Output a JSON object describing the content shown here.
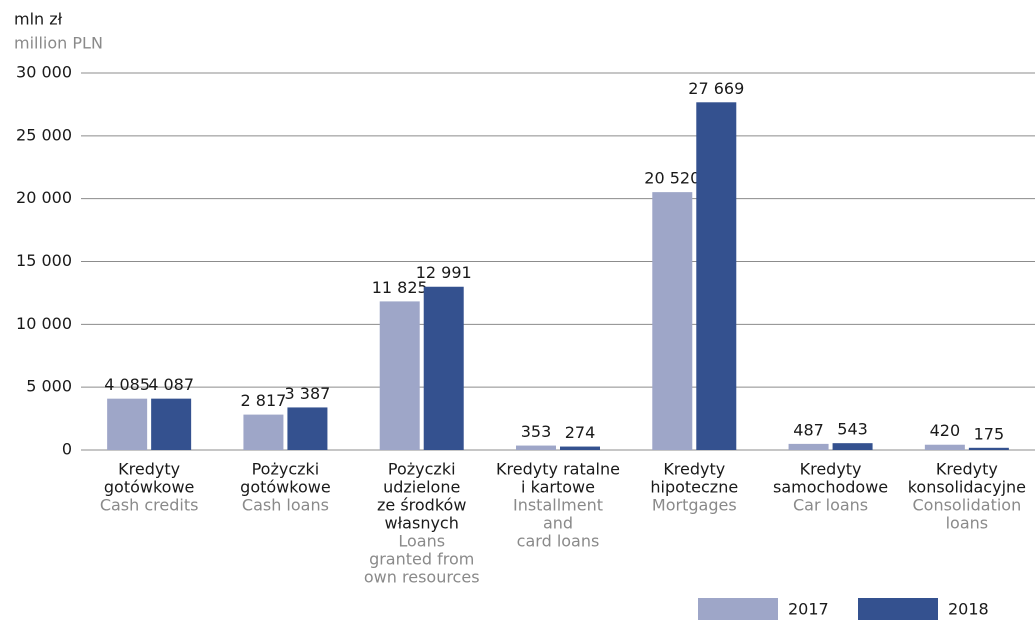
{
  "chart_data": {
    "type": "bar",
    "y_axis_label": "mln zł",
    "y_axis_label_en": "million PLN",
    "categories": [
      [
        "Kredyty",
        "gotówkowe"
      ],
      [
        "Pożyczki",
        "gotówkowe"
      ],
      [
        "Pożyczki",
        "udzielone",
        "ze środków",
        "własnych"
      ],
      [
        "Kredyty ratalne",
        "i kartowe"
      ],
      [
        "Kredyty",
        "hipoteczne"
      ],
      [
        "Kredyty",
        "samochodowe"
      ],
      [
        "Kredyty",
        "konsolidacyjne"
      ]
    ],
    "categories_en": [
      [
        "Cash credits"
      ],
      [
        "Cash loans"
      ],
      [
        "Loans",
        "granted from",
        "own resources"
      ],
      [
        "Installment",
        "and",
        "card loans"
      ],
      [
        "Mortgages"
      ],
      [
        "Car loans"
      ],
      [
        "Consolidation",
        "loans"
      ]
    ],
    "series": [
      {
        "name": "2017",
        "color": "#9ea6c8",
        "values": [
          4085,
          2817,
          11825,
          353,
          20520,
          487,
          420
        ],
        "value_labels": [
          "4 085",
          "2 817",
          "11 825",
          "353",
          "20 520",
          "487",
          "420"
        ]
      },
      {
        "name": "2018",
        "color": "#34518f",
        "values": [
          4087,
          3387,
          12991,
          274,
          27669,
          543,
          175
        ],
        "value_labels": [
          "4 087",
          "3 387",
          "12 991",
          "274",
          "27 669",
          "543",
          "175"
        ]
      }
    ],
    "ylim": [
      0,
      30000
    ],
    "yticks": [
      0,
      {
        "value": 5000,
        "label": "5 000"
      },
      {
        "value": 10000,
        "label": "10 000"
      },
      {
        "value": 15000,
        "label": "15 000"
      },
      {
        "value": 20000,
        "label": "20 000"
      },
      {
        "value": 25000,
        "label": "25 000"
      },
      {
        "value": 30000,
        "label": "30 000"
      }
    ],
    "grid": true
  }
}
